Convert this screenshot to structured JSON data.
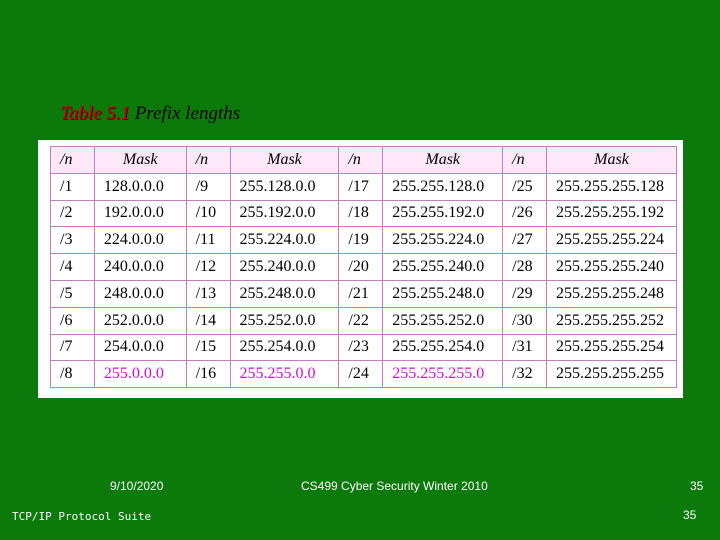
{
  "caption": {
    "number": "Table 5.1",
    "title": "Prefix lengths"
  },
  "table": {
    "headers": [
      "/n",
      "Mask",
      "/n",
      "Mask",
      "/n",
      "Mask",
      "/n",
      "Mask"
    ],
    "rows": [
      [
        "/1",
        "128.0.0.0",
        "/9",
        "255.128.0.0",
        "/17",
        "255.255.128.0",
        "/25",
        "255.255.255.128"
      ],
      [
        "/2",
        "192.0.0.0",
        "/10",
        "255.192.0.0",
        "/18",
        "255.255.192.0",
        "/26",
        "255.255.255.192"
      ],
      [
        "/3",
        "224.0.0.0",
        "/11",
        "255.224.0.0",
        "/19",
        "255.255.224.0",
        "/27",
        "255.255.255.224"
      ],
      [
        "/4",
        "240.0.0.0",
        "/12",
        "255.240.0.0",
        "/20",
        "255.255.240.0",
        "/28",
        "255.255.255.240"
      ],
      [
        "/5",
        "248.0.0.0",
        "/13",
        "255.248.0.0",
        "/21",
        "255.255.248.0",
        "/29",
        "255.255.255.248"
      ],
      [
        "/6",
        "252.0.0.0",
        "/14",
        "255.252.0.0",
        "/22",
        "255.255.252.0",
        "/30",
        "255.255.255.252"
      ],
      [
        "/7",
        "254.0.0.0",
        "/15",
        "255.254.0.0",
        "/23",
        "255.255.254.0",
        "/31",
        "255.255.255.254"
      ],
      [
        "/8",
        "255.0.0.0",
        "/16",
        "255.255.0.0",
        "/24",
        "255.255.255.0",
        "/32",
        "255.255.255.255"
      ]
    ],
    "highlight_color": "#d010d0"
  },
  "footer": {
    "date": "9/10/2020",
    "course": "CS499 Cyber Security Winter 2010",
    "page_top": "35",
    "suite": "TCP/IP Protocol Suite",
    "page_bottom": "35"
  },
  "colors": {
    "background": "#0b7a0b",
    "caption_number": "#cc0000",
    "header_fill": "#fce8f8"
  }
}
